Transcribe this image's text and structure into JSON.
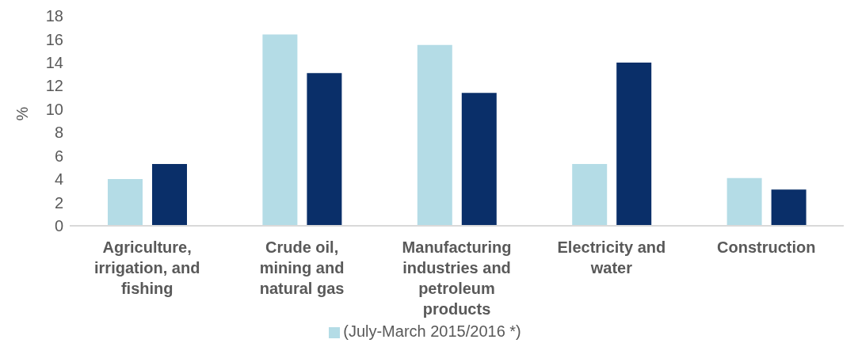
{
  "chart_data": {
    "type": "bar",
    "ylabel": "%",
    "categories": [
      "Agriculture, irrigation, and fishing",
      "Crude oil, mining and natural gas",
      "Manufacturing industries and petroleum products",
      "Electricity and water",
      "Construction"
    ],
    "series": [
      {
        "name": "(July-March 2015/2016 *)",
        "color": "#b4dce6",
        "values": [
          4.0,
          16.4,
          15.5,
          5.3,
          4.1
        ]
      },
      {
        "color": "#0a2f69",
        "values": [
          5.3,
          13.1,
          11.4,
          14.0,
          3.1
        ]
      }
    ],
    "ylim": [
      0,
      18
    ],
    "yticks": [
      0,
      2,
      4,
      6,
      8,
      10,
      12,
      14,
      16,
      18
    ],
    "grid": false,
    "legend": "bottom"
  }
}
